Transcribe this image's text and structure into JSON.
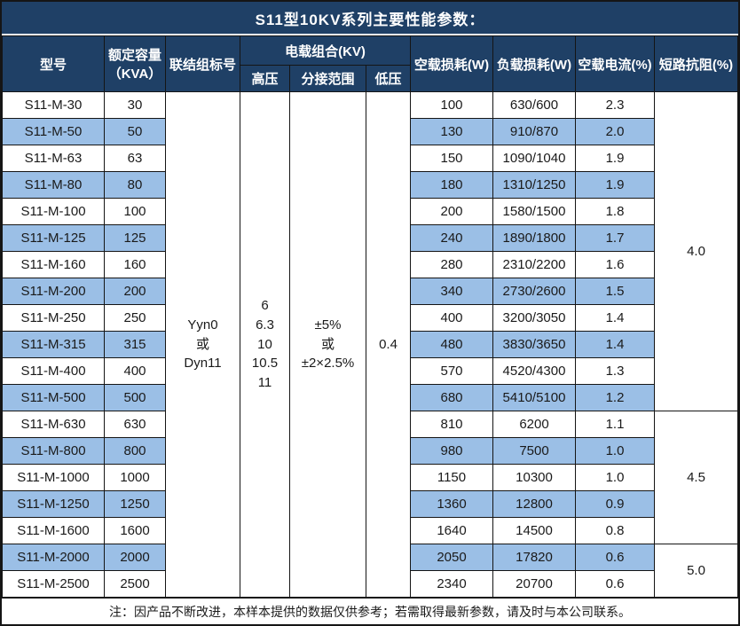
{
  "title": "S11型10KV系列主要性能参数：",
  "colors": {
    "header_bg": "#1f4066",
    "band_bg": "#9bbfe6",
    "border": "#151515",
    "header_text": "#ffffff"
  },
  "table": {
    "headers": {
      "model": "型号",
      "capacity": "额定容量\n（KVA）",
      "connection": "联结组标号",
      "load_combo": "电载组合(KV)",
      "hv": "高压",
      "tap_range": "分接范围",
      "lv": "低压",
      "no_load_loss": "空载损耗(W)",
      "load_loss": "负载损耗(W)",
      "no_load_current": "空载电流(%)",
      "impedance": "短路抗阻(%)"
    },
    "merged": {
      "connection": "Yyn0\n或\nDyn11",
      "hv": "6\n6.3\n10\n10.5\n11",
      "tap_range": "±5%\n或\n±2×2.5%",
      "lv": "0.4",
      "impedance_groups": [
        {
          "value": "4.0",
          "span": 12
        },
        {
          "value": "4.5",
          "span": 5
        },
        {
          "value": "5.0",
          "span": 2
        }
      ]
    },
    "rows": [
      {
        "model": "S11-M-30",
        "capacity": "30",
        "no_load_loss": "100",
        "load_loss": "630/600",
        "no_load_current": "2.3"
      },
      {
        "model": "S11-M-50",
        "capacity": "50",
        "no_load_loss": "130",
        "load_loss": "910/870",
        "no_load_current": "2.0"
      },
      {
        "model": "S11-M-63",
        "capacity": "63",
        "no_load_loss": "150",
        "load_loss": "1090/1040",
        "no_load_current": "1.9"
      },
      {
        "model": "S11-M-80",
        "capacity": "80",
        "no_load_loss": "180",
        "load_loss": "1310/1250",
        "no_load_current": "1.9"
      },
      {
        "model": "S11-M-100",
        "capacity": "100",
        "no_load_loss": "200",
        "load_loss": "1580/1500",
        "no_load_current": "1.8"
      },
      {
        "model": "S11-M-125",
        "capacity": "125",
        "no_load_loss": "240",
        "load_loss": "1890/1800",
        "no_load_current": "1.7"
      },
      {
        "model": "S11-M-160",
        "capacity": "160",
        "no_load_loss": "280",
        "load_loss": "2310/2200",
        "no_load_current": "1.6"
      },
      {
        "model": "S11-M-200",
        "capacity": "200",
        "no_load_loss": "340",
        "load_loss": "2730/2600",
        "no_load_current": "1.5"
      },
      {
        "model": "S11-M-250",
        "capacity": "250",
        "no_load_loss": "400",
        "load_loss": "3200/3050",
        "no_load_current": "1.4"
      },
      {
        "model": "S11-M-315",
        "capacity": "315",
        "no_load_loss": "480",
        "load_loss": "3830/3650",
        "no_load_current": "1.4"
      },
      {
        "model": "S11-M-400",
        "capacity": "400",
        "no_load_loss": "570",
        "load_loss": "4520/4300",
        "no_load_current": "1.3"
      },
      {
        "model": "S11-M-500",
        "capacity": "500",
        "no_load_loss": "680",
        "load_loss": "5410/5100",
        "no_load_current": "1.2"
      },
      {
        "model": "S11-M-630",
        "capacity": "630",
        "no_load_loss": "810",
        "load_loss": "6200",
        "no_load_current": "1.1"
      },
      {
        "model": "S11-M-800",
        "capacity": "800",
        "no_load_loss": "980",
        "load_loss": "7500",
        "no_load_current": "1.0"
      },
      {
        "model": "S11-M-1000",
        "capacity": "1000",
        "no_load_loss": "1150",
        "load_loss": "10300",
        "no_load_current": "1.0"
      },
      {
        "model": "S11-M-1250",
        "capacity": "1250",
        "no_load_loss": "1360",
        "load_loss": "12800",
        "no_load_current": "0.9"
      },
      {
        "model": "S11-M-1600",
        "capacity": "1600",
        "no_load_loss": "1640",
        "load_loss": "14500",
        "no_load_current": "0.8"
      },
      {
        "model": "S11-M-2000",
        "capacity": "2000",
        "no_load_loss": "2050",
        "load_loss": "17820",
        "no_load_current": "0.6"
      },
      {
        "model": "S11-M-2500",
        "capacity": "2500",
        "no_load_loss": "2340",
        "load_loss": "20700",
        "no_load_current": "0.6"
      }
    ]
  },
  "footer_note": "注：因产品不断改进，本样本提供的数据仅供参考；若需取得最新参数，请及时与本公司联系。"
}
